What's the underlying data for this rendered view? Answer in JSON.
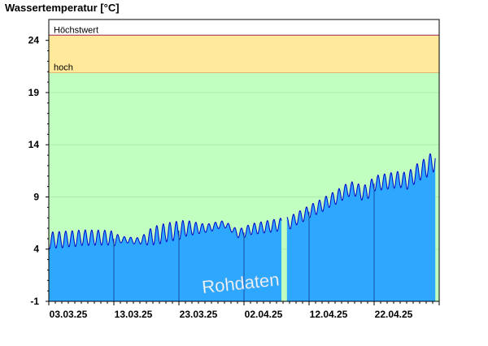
{
  "chart_data": {
    "type": "area",
    "title": "Wassertemperatur [°C]",
    "xlabel": "",
    "ylabel": "",
    "ylim": [
      -1,
      26
    ],
    "yticks": [
      -1,
      4,
      9,
      14,
      19,
      24
    ],
    "x_tick_labels": [
      "03.03.25",
      "13.03.25",
      "23.03.25",
      "02.04.25",
      "12.04.25",
      "22.04.25"
    ],
    "x_days": 60,
    "bands": [
      {
        "label": "Höchstwert",
        "from": 24.5,
        "to": 26,
        "color": "#ffffff"
      },
      {
        "label": "hoch",
        "from": 20.9,
        "to": 24.5,
        "color": "#ffe89a"
      },
      {
        "label": "",
        "from": -1,
        "to": 20.9,
        "color": "#c0ffc0"
      }
    ],
    "watermark": "Rohdaten",
    "gaps": [
      [
        35.8,
        36.6
      ],
      [
        59.4,
        60
      ]
    ],
    "series": [
      {
        "color": "#2ea8ff",
        "line_color": "#0000cc",
        "daily_mean": [
          [
            0,
            4.8
          ],
          [
            1,
            4.9
          ],
          [
            2,
            4.9
          ],
          [
            3,
            5.0
          ],
          [
            4,
            5.0
          ],
          [
            5,
            5.1
          ],
          [
            6,
            5.1
          ],
          [
            7,
            5.1
          ],
          [
            8,
            5.1
          ],
          [
            9,
            5.1
          ],
          [
            10,
            5.0
          ],
          [
            11,
            4.9
          ],
          [
            12,
            4.9
          ],
          [
            13,
            4.8
          ],
          [
            14,
            4.8
          ],
          [
            15,
            5.0
          ],
          [
            16,
            5.3
          ],
          [
            17,
            5.4
          ],
          [
            18,
            5.6
          ],
          [
            19,
            5.7
          ],
          [
            20,
            5.8
          ],
          [
            21,
            6.0
          ],
          [
            22,
            6.0
          ],
          [
            23,
            6.0
          ],
          [
            24,
            6.0
          ],
          [
            25,
            6.1
          ],
          [
            26,
            6.3
          ],
          [
            27,
            6.4
          ],
          [
            28,
            6.0
          ],
          [
            29,
            5.5
          ],
          [
            30,
            5.6
          ],
          [
            31,
            5.9
          ],
          [
            32,
            6.0
          ],
          [
            33,
            6.1
          ],
          [
            34,
            6.2
          ],
          [
            35,
            6.3
          ],
          [
            37,
            6.5
          ],
          [
            38,
            6.9
          ],
          [
            39,
            7.2
          ],
          [
            40,
            7.6
          ],
          [
            41,
            7.9
          ],
          [
            42,
            8.2
          ],
          [
            43,
            8.6
          ],
          [
            44,
            8.9
          ],
          [
            45,
            9.3
          ],
          [
            46,
            9.7
          ],
          [
            47,
            9.8
          ],
          [
            48,
            9.4
          ],
          [
            49,
            9.5
          ],
          [
            50,
            10.3
          ],
          [
            51,
            10.4
          ],
          [
            52,
            10.5
          ],
          [
            53,
            10.6
          ],
          [
            54,
            10.7
          ],
          [
            55,
            10.5
          ],
          [
            56,
            11.0
          ],
          [
            57,
            11.5
          ],
          [
            58,
            11.8
          ],
          [
            59,
            12.4
          ]
        ],
        "daily_amplitude": [
          [
            0,
            0.8
          ],
          [
            10,
            0.7
          ],
          [
            11,
            0.3
          ],
          [
            14,
            0.3
          ],
          [
            16,
            0.9
          ],
          [
            20,
            0.9
          ],
          [
            24,
            0.4
          ],
          [
            28,
            0.3
          ],
          [
            30,
            0.5
          ],
          [
            35,
            0.6
          ],
          [
            40,
            0.6
          ],
          [
            48,
            0.7
          ],
          [
            55,
            0.8
          ],
          [
            59,
            1.0
          ]
        ]
      }
    ]
  }
}
